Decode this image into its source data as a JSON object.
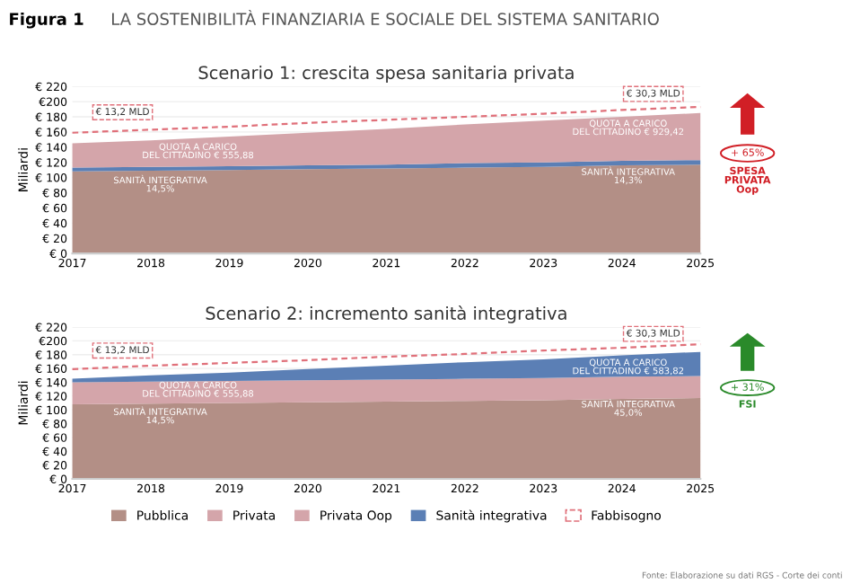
{
  "chart_data": [
    {
      "type": "area",
      "stacked": true,
      "title": "Scenario 1: crescita spesa sanitaria privata",
      "ylabel": "Miliardi",
      "categories": [
        "2017",
        "2018",
        "2019",
        "2020",
        "2021",
        "2022",
        "2023",
        "2024",
        "2025"
      ],
      "series": [
        {
          "color": "#b38f86",
          "values": [
            108,
            109,
            110,
            111,
            112,
            113,
            114,
            116,
            117
          ]
        },
        {
          "color": "#5b7fb5",
          "values": [
            5,
            5,
            5,
            5,
            5,
            6,
            6,
            6,
            6
          ]
        },
        {
          "color": "#d4a5aa",
          "values": [
            32,
            35,
            39,
            43,
            47,
            51,
            55,
            58,
            62
          ]
        },
        {
          "type": "line",
          "line_style": "dashed",
          "color": "#e0707a",
          "values": [
            159,
            163,
            167,
            172,
            176,
            180,
            184,
            189,
            193
          ]
        }
      ],
      "ylim": [
        0,
        220
      ],
      "yticks": [
        {
          "value": 0,
          "label": "€ 0"
        },
        {
          "value": 20,
          "label": "€ 20"
        },
        {
          "value": 40,
          "label": "€ 40"
        },
        {
          "value": 60,
          "label": "€ 60"
        },
        {
          "value": 80,
          "label": "€ 80"
        },
        {
          "value": 100,
          "label": "€ 100"
        },
        {
          "value": 120,
          "label": "€ 120"
        },
        {
          "value": 140,
          "label": "€ 140"
        },
        {
          "value": 160,
          "label": "€ 160"
        },
        {
          "value": 180,
          "label": "€ 180"
        },
        {
          "value": 200,
          "label": "€200"
        },
        {
          "value": 220,
          "label": "€ 220"
        }
      ],
      "grid": "y",
      "annotations": [
        "Figura 1",
        "LA SOSTENIBILITÀ FINANZIARIA E SOCIALE DEL SISTEMA SANITARIO",
        "+ 65%",
        "SPESA\nPRIVATA\nOop",
        "€ 13,2 MLD",
        "€ 30,3 MLD",
        "QUOTA A CARICO\nDEL CITTADINO € 555,88",
        "SANITÀ INTEGRATIVA\n14,5%",
        "QUOTA A CARICO\nDEL CITTADINO € 929,42",
        "SANITÀ INTEGRATIVA\n14,3%"
      ]
    },
    {
      "type": "area",
      "stacked": true,
      "title": "Scenario 2: incremento sanità integrativa",
      "ylabel": "Miliardi",
      "categories": [
        "2017",
        "2018",
        "2019",
        "2020",
        "2021",
        "2022",
        "2023",
        "2024",
        "2025"
      ],
      "series": [
        {
          "name": "Pubblica",
          "color": "#b38f86",
          "values": [
            108,
            109,
            110,
            111,
            112,
            113,
            114,
            116,
            117
          ]
        },
        {
          "name": "Privata",
          "color": "#d4a5aa",
          "values": [
            null,
            null,
            null,
            null,
            null,
            null,
            null,
            null,
            null
          ]
        },
        {
          "name": "Privata Oop",
          "color": "#d4a5aa",
          "values": [
            32,
            32,
            32,
            32,
            32,
            32,
            32,
            32,
            32
          ]
        },
        {
          "name": "Sanità integrativa",
          "color": "#5b7fb5",
          "values": [
            5,
            9,
            12,
            16,
            20,
            24,
            27,
            31,
            35
          ]
        },
        {
          "name": "Fabbisogno",
          "type": "line",
          "line_style": "dashed",
          "color": "#e0707a",
          "values": [
            159,
            164,
            168,
            172,
            177,
            181,
            186,
            190,
            195
          ]
        }
      ],
      "ylim": [
        0,
        220
      ],
      "yticks": [
        {
          "value": 0,
          "label": "€ 0"
        },
        {
          "value": 20,
          "label": "€ 20"
        },
        {
          "value": 40,
          "label": "€ 40"
        },
        {
          "value": 60,
          "label": "€ 60"
        },
        {
          "value": 80,
          "label": "€ 80"
        },
        {
          "value": 100,
          "label": "€ 100"
        },
        {
          "value": 120,
          "label": "€ 120"
        },
        {
          "value": 140,
          "label": "€ 140"
        },
        {
          "value": 160,
          "label": "€ 160"
        },
        {
          "value": 180,
          "label": "€ 180"
        },
        {
          "value": 200,
          "label": "€200"
        },
        {
          "value": 220,
          "label": "€ 220"
        }
      ],
      "grid": "y",
      "legend": "bottom",
      "annotations": [
        "+ 31%",
        "FSI",
        "Fonte: Elaborazione su dati RGS - Corte dei conti",
        "€ 13,2 MLD",
        "€ 30,3 MLD",
        "QUOTA A CARICO\nDEL CITTADINO € 555,88",
        "SANITÀ INTEGRATIVA\n14,5%",
        "QUOTA A CARICO\nDEL CITTADINO € 583,82",
        "SANITÀ INTEGRATIVA\n45,0%"
      ]
    }
  ]
}
